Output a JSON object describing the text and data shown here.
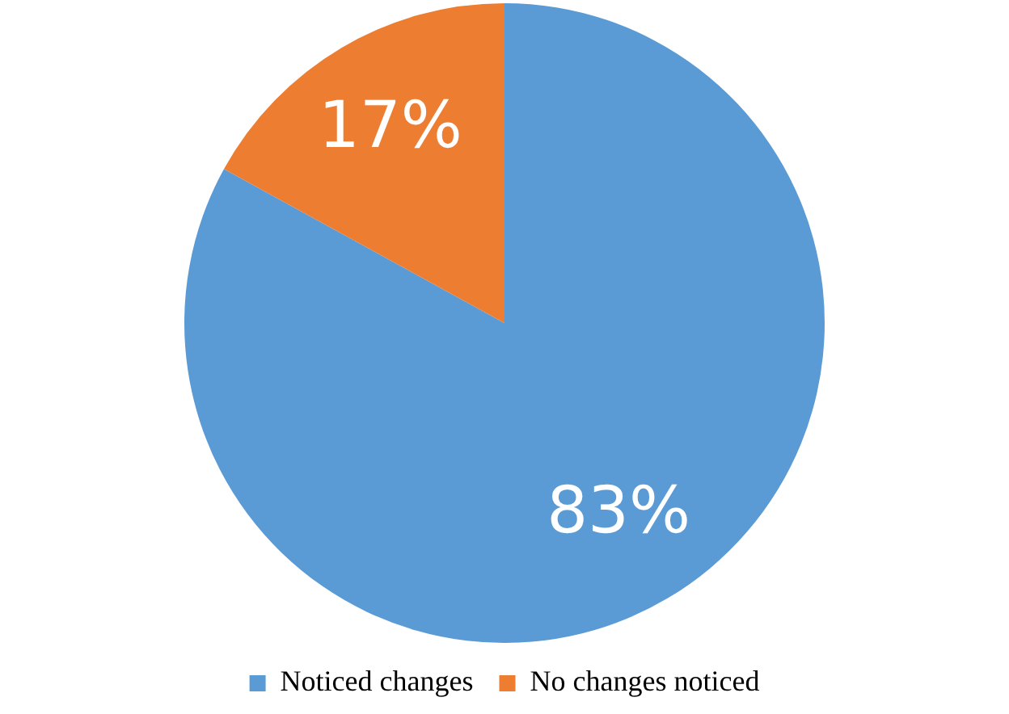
{
  "chart_data": {
    "type": "pie",
    "categories": [
      "Noticed changes",
      "No changes noticed"
    ],
    "values": [
      83,
      17
    ],
    "colors": [
      "#5b9bd5",
      "#ed7d31"
    ],
    "value_labels": [
      "83%",
      "17%"
    ],
    "legend": "bottom"
  }
}
